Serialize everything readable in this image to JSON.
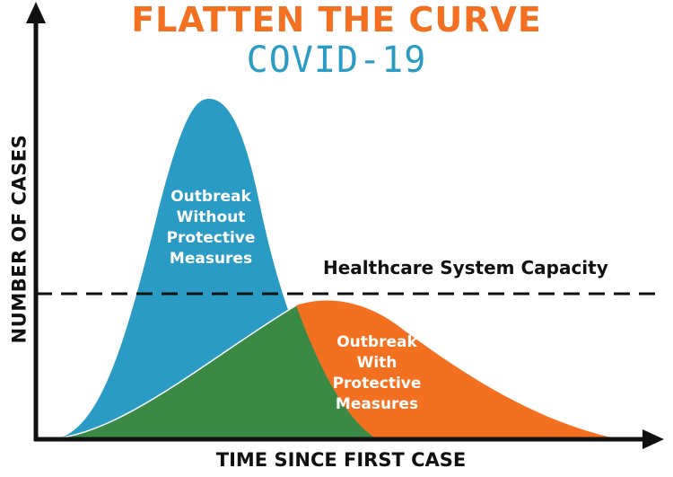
{
  "title": "FLATTEN THE CURVE",
  "subtitle": "COVID-19",
  "y_axis_label": "NUMBER OF CASES",
  "x_axis_label": "TIME SINCE FIRST CASE",
  "capacity_label": "Healthcare System Capacity",
  "curves": {
    "without": {
      "label": "Outbreak\nWithout\nProtective\nMeasures"
    },
    "with": {
      "label": "Outbreak\nWith\nProtective\nMeasures"
    }
  },
  "colors": {
    "title": "#f37021",
    "subtitle": "#2a9bc4",
    "curve_without": "#2a9bc4",
    "curve_with": "#f37021",
    "overlap": "#3a8a46",
    "axis": "#111111"
  }
}
